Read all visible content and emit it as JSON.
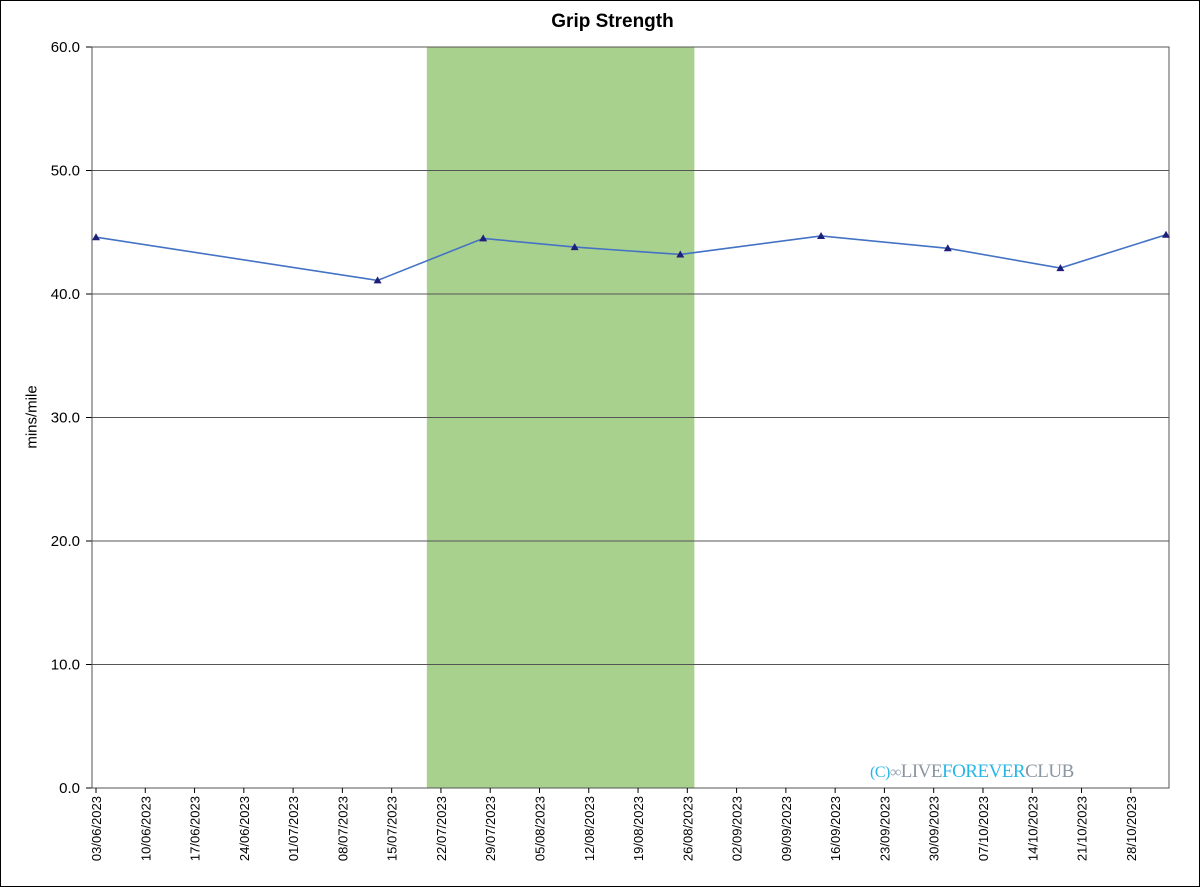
{
  "chart_data": {
    "type": "line",
    "title": "Grip Strength",
    "xlabel": "",
    "ylabel": "mins/mile",
    "ylim": [
      0,
      60
    ],
    "yticks": [
      "0.0",
      "10.0",
      "20.0",
      "30.0",
      "40.0",
      "50.0",
      "60.0"
    ],
    "xlim": [
      "2023-06-03",
      "2023-11-02"
    ],
    "xticks": [
      "03/06/2023",
      "10/06/2023",
      "17/06/2023",
      "24/06/2023",
      "01/07/2023",
      "08/07/2023",
      "15/07/2023",
      "22/07/2023",
      "29/07/2023",
      "05/08/2023",
      "12/08/2023",
      "19/08/2023",
      "26/08/2023",
      "02/09/2023",
      "09/09/2023",
      "16/09/2023",
      "23/09/2023",
      "30/09/2023",
      "07/10/2023",
      "14/10/2023",
      "21/10/2023",
      "28/10/2023"
    ],
    "grid": true,
    "highlight_band": {
      "x_start": "2023-07-20",
      "x_end": "2023-08-27",
      "color": "#a9d18e"
    },
    "series": [
      {
        "color": "#4472c4",
        "marker": "triangle",
        "marker_color": "#1f1f7a",
        "points": [
          {
            "x": "2023-06-03",
            "y": 44.6
          },
          {
            "x": "2023-07-13",
            "y": 41.1
          },
          {
            "x": "2023-07-28",
            "y": 44.5
          },
          {
            "x": "2023-08-10",
            "y": 43.8
          },
          {
            "x": "2023-08-25",
            "y": 43.2
          },
          {
            "x": "2023-09-14",
            "y": 44.7
          },
          {
            "x": "2023-10-02",
            "y": 43.7
          },
          {
            "x": "2023-10-18",
            "y": 42.1
          },
          {
            "x": "2023-11-02",
            "y": 44.8
          }
        ]
      }
    ]
  },
  "watermark": {
    "copyright": "(C)",
    "word1": "LIVE",
    "word2": "FOREVER",
    "word3": "CLUB"
  }
}
